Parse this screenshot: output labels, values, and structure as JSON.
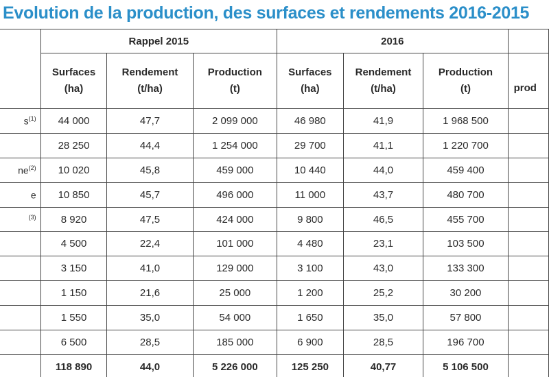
{
  "title": "Evolution de la production, des surfaces et rendements 2016-2015",
  "groups": [
    "Rappel 2015",
    "2016"
  ],
  "cut_header": "prod",
  "columns": [
    {
      "name": "Surfaces",
      "unit": "(ha)"
    },
    {
      "name": "Rendement",
      "unit": "(t/ha)"
    },
    {
      "name": "Production",
      "unit": "(t)"
    },
    {
      "name": "Surfaces",
      "unit": "(ha)"
    },
    {
      "name": "Rendement",
      "unit": "(t/ha)"
    },
    {
      "name": "Production",
      "unit": "(t)"
    }
  ],
  "rows": [
    {
      "label": "s",
      "note": "(1)",
      "cells": [
        "44 000",
        "47,7",
        "2 099 000",
        "46 980",
        "41,9",
        "1 968 500"
      ]
    },
    {
      "label": "",
      "note": "",
      "cells": [
        "28 250",
        "44,4",
        "1 254 000",
        "29 700",
        "41,1",
        "1 220 700"
      ]
    },
    {
      "label": "ne",
      "note": "(2)",
      "cells": [
        "10 020",
        "45,8",
        "459 000",
        "10 440",
        "44,0",
        "459 400"
      ]
    },
    {
      "label": "e",
      "note": "",
      "cells": [
        "10 850",
        "45,7",
        "496 000",
        "11 000",
        "43,7",
        "480 700"
      ]
    },
    {
      "label": "",
      "note": "(3)",
      "cells": [
        "8 920",
        "47,5",
        "424 000",
        "9 800",
        "46,5",
        "455 700"
      ]
    },
    {
      "label": "",
      "note": "",
      "cells": [
        "4 500",
        "22,4",
        "101 000",
        "4 480",
        "23,1",
        "103 500"
      ]
    },
    {
      "label": "",
      "note": "",
      "cells": [
        "3 150",
        "41,0",
        "129 000",
        "3 100",
        "43,0",
        "133 300"
      ]
    },
    {
      "label": "",
      "note": "",
      "cells": [
        "1 150",
        "21,6",
        "25 000",
        "1 200",
        "25,2",
        "30 200"
      ]
    },
    {
      "label": "",
      "note": "",
      "cells": [
        "1 550",
        "35,0",
        "54 000",
        "1 650",
        "35,0",
        "57 800"
      ]
    },
    {
      "label": "",
      "note": "",
      "cells": [
        "6 500",
        "28,5",
        "185 000",
        "6 900",
        "28,5",
        "196 700"
      ]
    }
  ],
  "total": {
    "label": "",
    "cells": [
      "118 890",
      "44,0",
      "5 226 000",
      "125 250",
      "40,77",
      "5 106 500"
    ]
  }
}
